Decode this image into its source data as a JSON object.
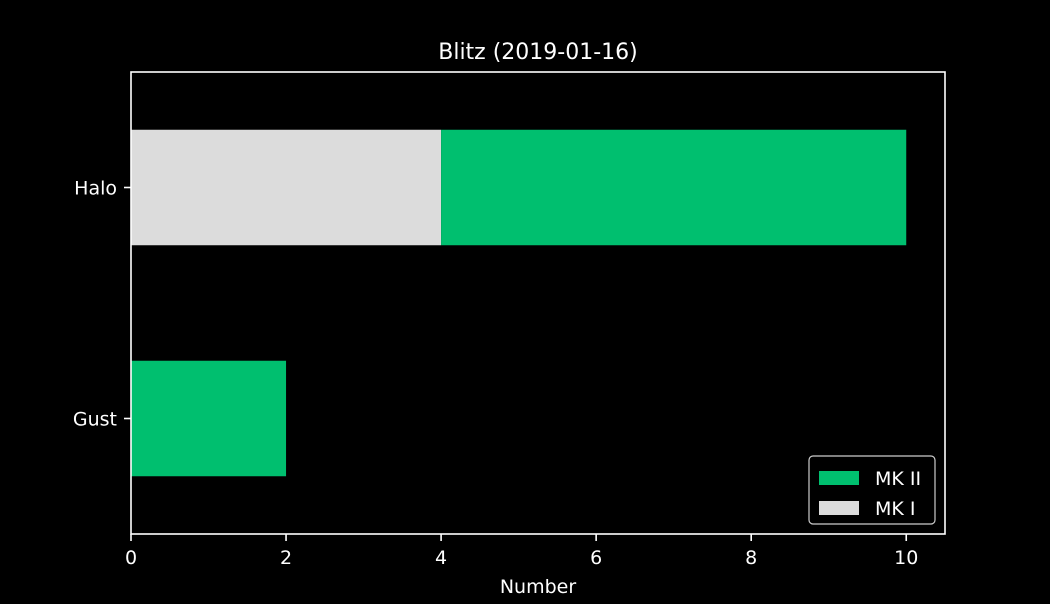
{
  "chart_data": {
    "type": "bar",
    "orientation": "horizontal",
    "stacked": true,
    "title": "Blitz (2019-01-16)",
    "xlabel": "Number",
    "ylabel": "",
    "categories": [
      "Halo",
      "Gust"
    ],
    "series": [
      {
        "name": "MK I",
        "values": [
          4,
          0
        ],
        "color": "#dcdcdc"
      },
      {
        "name": "MK II",
        "values": [
          6,
          2
        ],
        "color": "#00bf6f"
      }
    ],
    "xlim": [
      0,
      10.5
    ],
    "xticks": [
      0,
      2,
      4,
      6,
      8,
      10
    ],
    "grid": false,
    "legend": {
      "position": "lower-right",
      "entries": [
        "MK II",
        "MK I"
      ]
    },
    "background": "#000000",
    "foreground": "#ffffff"
  }
}
